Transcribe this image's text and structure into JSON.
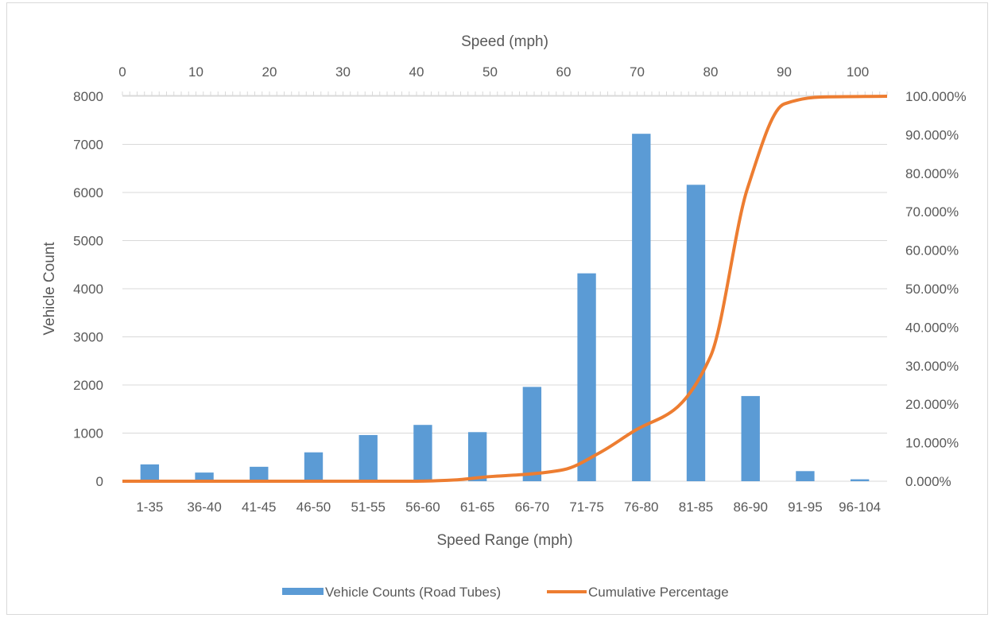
{
  "chart_data": {
    "type": "bar",
    "title": "",
    "xlabel": "Speed Range (mph)",
    "ylabel": "Vehicle Count",
    "x2label": "Speed (mph)",
    "categories": [
      "1-35",
      "36-40",
      "41-45",
      "46-50",
      "51-55",
      "56-60",
      "61-65",
      "66-70",
      "71-75",
      "76-80",
      "81-85",
      "86-90",
      "91-95",
      "96-104"
    ],
    "ylim": [
      0,
      8000
    ],
    "yticks": [
      0,
      1000,
      2000,
      3000,
      4000,
      5000,
      6000,
      7000,
      8000
    ],
    "y2lim": [
      0,
      100
    ],
    "y2ticks": [
      "0.000%",
      "10.000%",
      "20.000%",
      "30.000%",
      "40.000%",
      "50.000%",
      "60.000%",
      "70.000%",
      "80.000%",
      "90.000%",
      "100.000%"
    ],
    "x2lim": [
      0,
      104
    ],
    "x2ticks": [
      0,
      10,
      20,
      30,
      40,
      50,
      60,
      70,
      80,
      90,
      100
    ],
    "series": [
      {
        "name": "Vehicle Counts (Road Tubes)",
        "type": "bar",
        "axis": "primary",
        "color": "#5b9bd5",
        "values": [
          350,
          180,
          300,
          600,
          960,
          1170,
          1020,
          1960,
          4320,
          7220,
          6160,
          1770,
          210,
          40
        ]
      },
      {
        "name": "Cumulative Percentage",
        "type": "line",
        "axis": "secondary",
        "color": "#ed7d31",
        "x": [
          0,
          35,
          40,
          45,
          50,
          55,
          60,
          65,
          70,
          75,
          80,
          85,
          90,
          95,
          104
        ],
        "values": [
          0,
          0,
          0,
          0.3,
          1.2,
          1.8,
          3.0,
          7.5,
          13.5,
          18.5,
          32.5,
          76.0,
          98.0,
          99.8,
          100
        ]
      }
    ],
    "grid": true,
    "legend": "bottom"
  }
}
